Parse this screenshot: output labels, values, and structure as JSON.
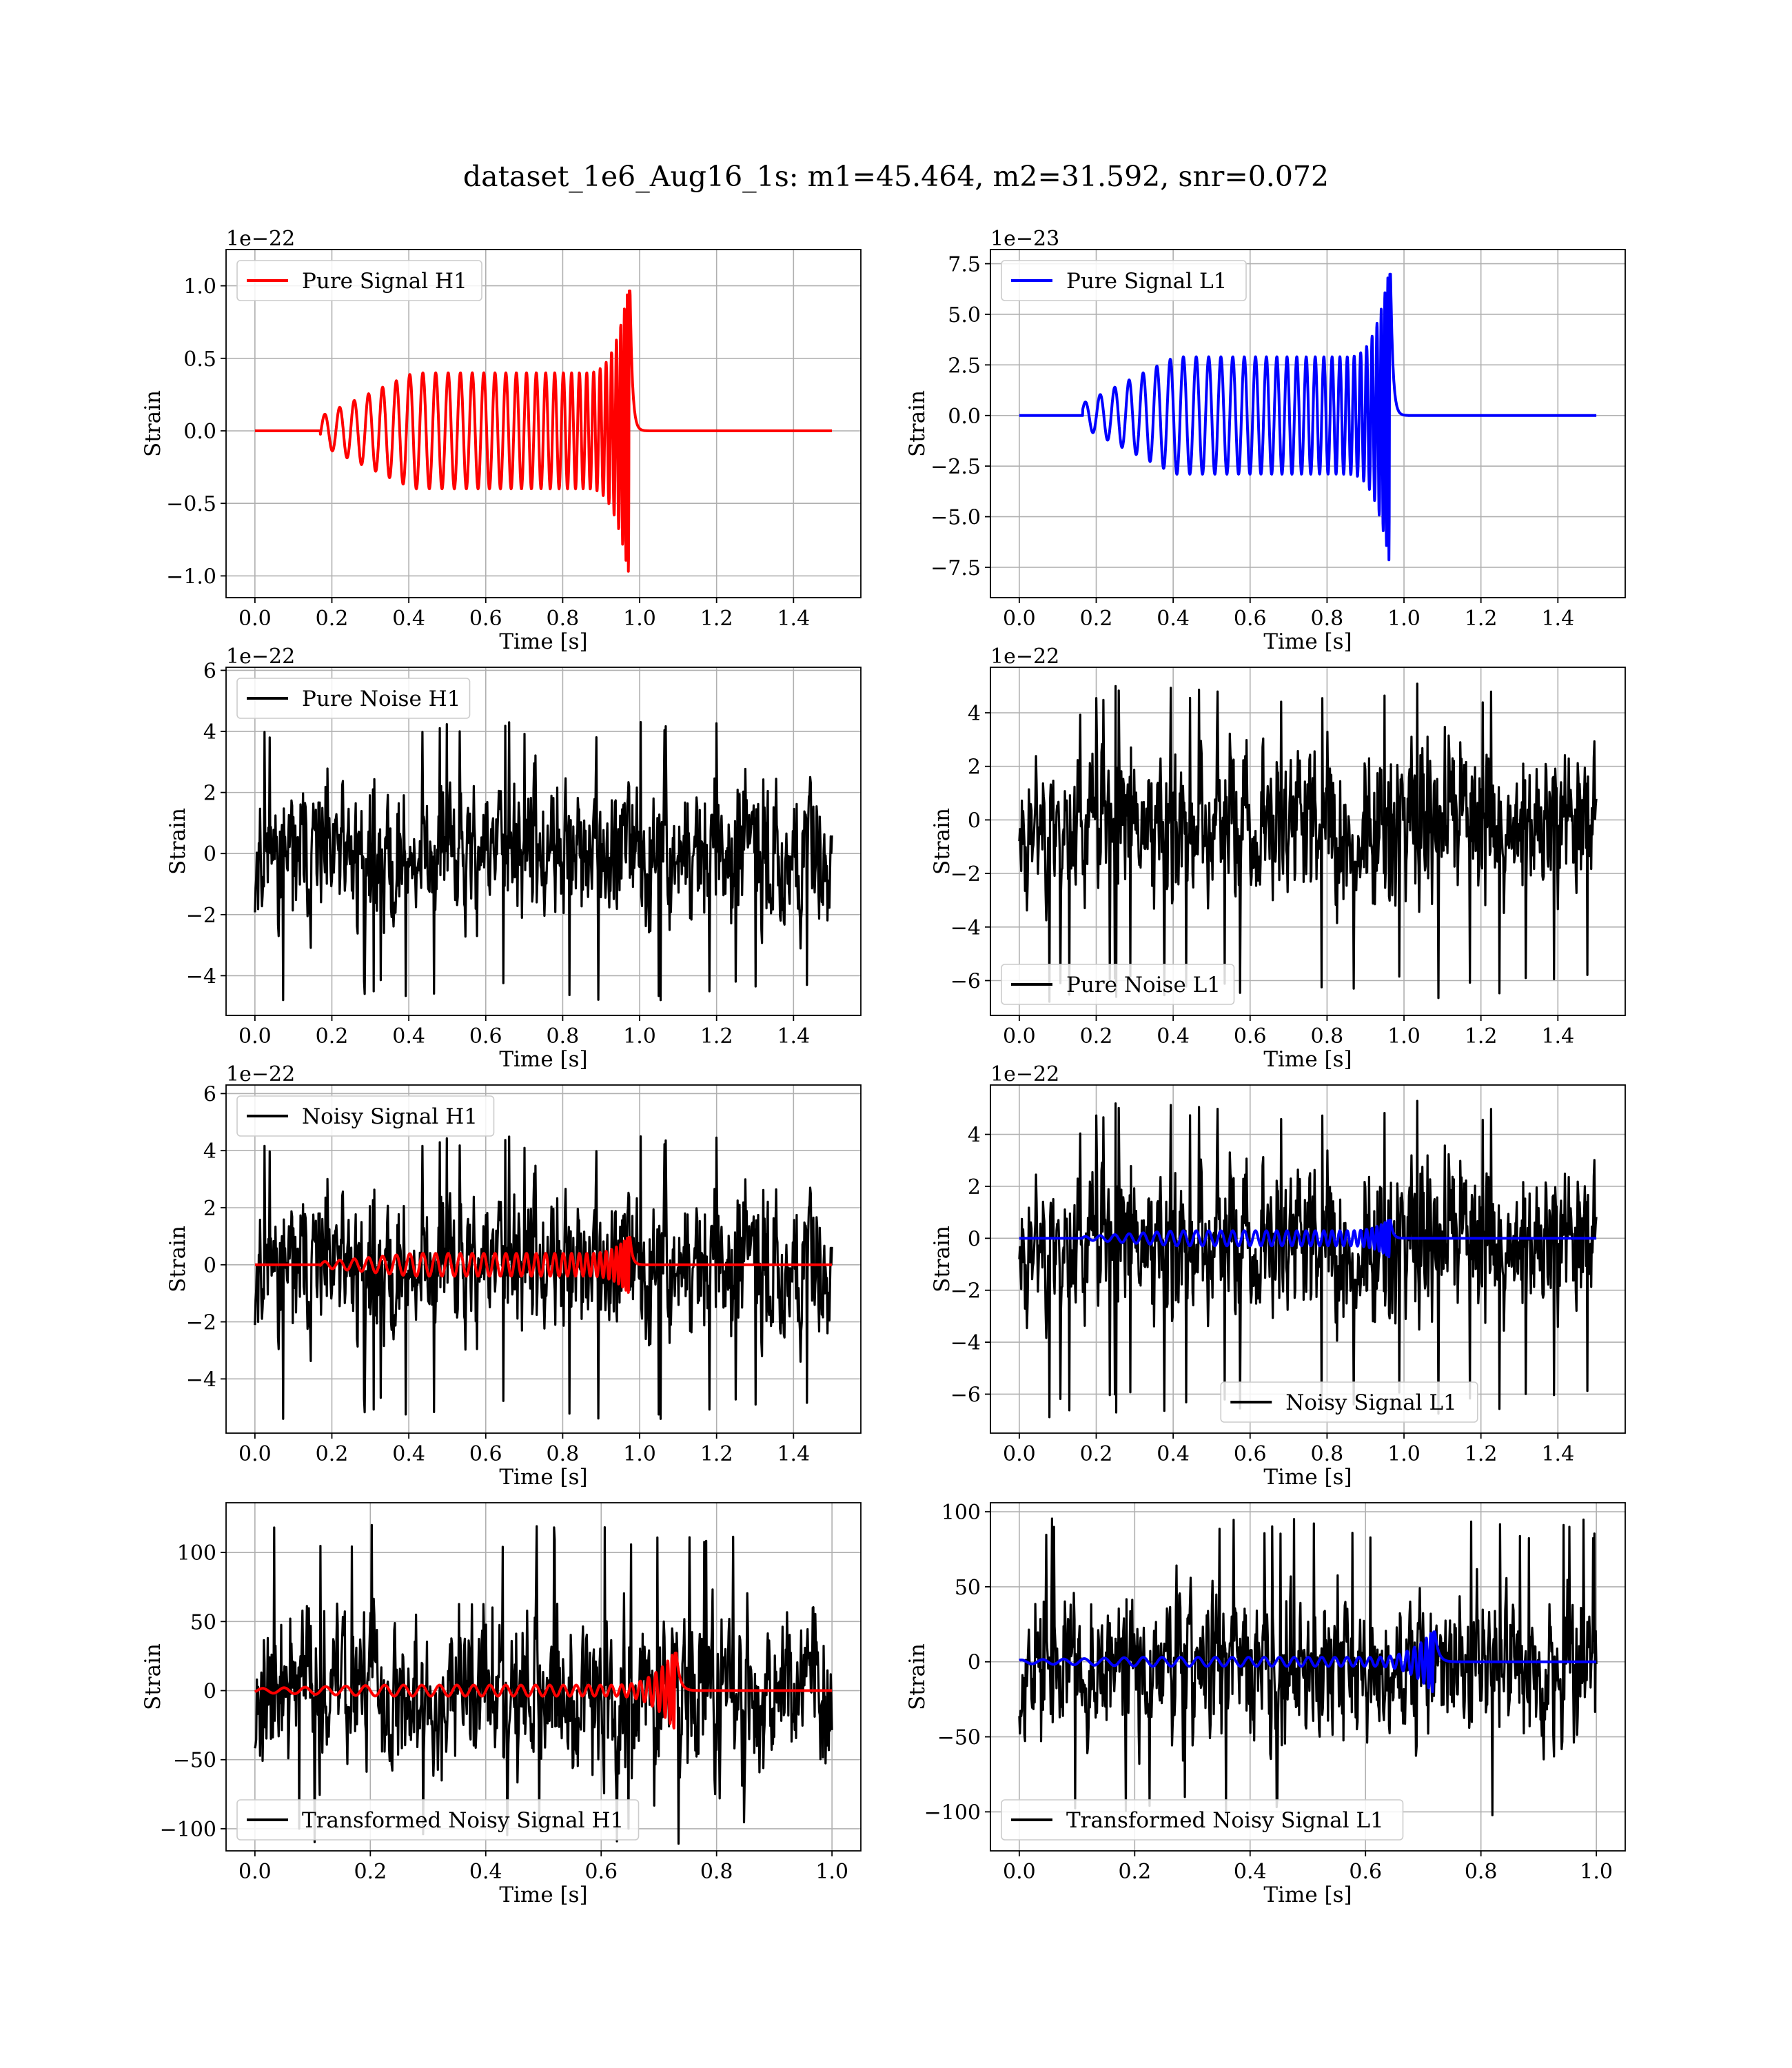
{
  "figure_title": "dataset_1e6_Aug16_1s: m1=45.464, m2=31.592, snr=0.072",
  "colors": {
    "h1_signal": "#ff0000",
    "l1_signal": "#0000ff",
    "noise": "#000000",
    "grid": "#b0b0b0",
    "axes": "#000000"
  },
  "chart_data": [
    {
      "type": "line",
      "legend": "Pure Signal H1",
      "legend_position": "upper-left",
      "xlabel": "Time [s]",
      "ylabel": "Strain",
      "offset_text": "1e−22",
      "xlim": [
        -0.075,
        1.575
      ],
      "ylim": [
        -1.15,
        1.25
      ],
      "xticks": [
        0.0,
        0.2,
        0.4,
        0.6,
        0.8,
        1.0,
        1.2,
        1.4
      ],
      "xtick_labels": [
        "0.0",
        "0.2",
        "0.4",
        "0.6",
        "0.8",
        "1.0",
        "1.2",
        "1.4"
      ],
      "yticks": [
        1.0,
        0.5,
        0.0,
        -0.5,
        -1.0
      ],
      "ytick_labels": [
        "1.0",
        "0.5",
        "0.0",
        "−0.5",
        "−1.0"
      ],
      "grid": true,
      "series": [
        {
          "name": "Pure Signal H1",
          "color": "#ff0000",
          "kind": "chirp",
          "x_range": [
            0.0,
            1.5
          ],
          "onset": 0.17,
          "merger": 0.975,
          "amp_start": 0.1,
          "amp_mid": 0.4,
          "amp_peak": 1.05
        }
      ]
    },
    {
      "type": "line",
      "legend": "Pure Signal L1",
      "legend_position": "upper-left",
      "xlabel": "Time [s]",
      "ylabel": "Strain",
      "offset_text": "1e−23",
      "xlim": [
        -0.075,
        1.575
      ],
      "ylim": [
        -9.0,
        8.2
      ],
      "xticks": [
        0.0,
        0.2,
        0.4,
        0.6,
        0.8,
        1.0,
        1.2,
        1.4
      ],
      "xtick_labels": [
        "0.0",
        "0.2",
        "0.4",
        "0.6",
        "0.8",
        "1.0",
        "1.2",
        "1.4"
      ],
      "yticks": [
        7.5,
        5.0,
        2.5,
        0.0,
        -2.5,
        -5.0,
        -7.5
      ],
      "ytick_labels": [
        "7.5",
        "5.0",
        "2.5",
        "0.0",
        "−2.5",
        "−5.0",
        "−7.5"
      ],
      "grid": true,
      "series": [
        {
          "name": "Pure Signal L1",
          "color": "#0000ff",
          "kind": "chirp",
          "x_range": [
            0.0,
            1.5
          ],
          "onset": 0.165,
          "merger": 0.965,
          "amp_start": 0.6,
          "amp_mid": 2.9,
          "amp_peak": 7.6
        }
      ]
    },
    {
      "type": "line",
      "legend": "Pure Noise H1",
      "legend_position": "upper-left",
      "xlabel": "Time [s]",
      "ylabel": "Strain",
      "offset_text": "1e−22",
      "xlim": [
        -0.075,
        1.575
      ],
      "ylim": [
        -5.3,
        6.1
      ],
      "xticks": [
        0.0,
        0.2,
        0.4,
        0.6,
        0.8,
        1.0,
        1.2,
        1.4
      ],
      "xtick_labels": [
        "0.0",
        "0.2",
        "0.4",
        "0.6",
        "0.8",
        "1.0",
        "1.2",
        "1.4"
      ],
      "yticks": [
        6,
        4,
        2,
        0,
        -2,
        -4
      ],
      "ytick_labels": [
        "6",
        "4",
        "2",
        "0",
        "−2",
        "−4"
      ],
      "grid": true,
      "series": [
        {
          "name": "Pure Noise H1",
          "color": "#000000",
          "kind": "noise",
          "x_range": [
            0.0,
            1.5
          ],
          "n": 900,
          "seed": 11,
          "min": -4.8,
          "max": 4.4
        }
      ]
    },
    {
      "type": "line",
      "legend": "Pure Noise L1",
      "legend_position": "lower-left",
      "xlabel": "Time [s]",
      "ylabel": "Strain",
      "offset_text": "1e−22",
      "xlim": [
        -0.075,
        1.575
      ],
      "ylim": [
        -7.3,
        5.7
      ],
      "xticks": [
        0.0,
        0.2,
        0.4,
        0.6,
        0.8,
        1.0,
        1.2,
        1.4
      ],
      "xtick_labels": [
        "0.0",
        "0.2",
        "0.4",
        "0.6",
        "0.8",
        "1.0",
        "1.2",
        "1.4"
      ],
      "yticks": [
        4,
        2,
        0,
        -2,
        -4,
        -6
      ],
      "ytick_labels": [
        "4",
        "2",
        "0",
        "−2",
        "−4",
        "−6"
      ],
      "grid": true,
      "series": [
        {
          "name": "Pure Noise L1",
          "color": "#000000",
          "kind": "noise",
          "x_range": [
            0.0,
            1.5
          ],
          "n": 900,
          "seed": 23,
          "min": -6.8,
          "max": 5.1
        }
      ]
    },
    {
      "type": "line",
      "legend": "Noisy Signal H1",
      "legend_position": "upper-left",
      "xlabel": "Time [s]",
      "ylabel": "Strain",
      "offset_text": "1e−22",
      "xlim": [
        -0.075,
        1.575
      ],
      "ylim": [
        -5.9,
        6.3
      ],
      "xticks": [
        0.0,
        0.2,
        0.4,
        0.6,
        0.8,
        1.0,
        1.2,
        1.4
      ],
      "xtick_labels": [
        "0.0",
        "0.2",
        "0.4",
        "0.6",
        "0.8",
        "1.0",
        "1.2",
        "1.4"
      ],
      "yticks": [
        6,
        4,
        2,
        0,
        -2,
        -4
      ],
      "ytick_labels": [
        "6",
        "4",
        "2",
        "0",
        "−2",
        "−4"
      ],
      "grid": true,
      "series": [
        {
          "name": "Noisy Signal H1",
          "color": "#000000",
          "kind": "noise",
          "x_range": [
            0.0,
            1.5
          ],
          "n": 900,
          "seed": 11,
          "min": -5.4,
          "max": 4.6
        },
        {
          "name": "",
          "color": "#ff0000",
          "kind": "chirp",
          "x_range": [
            0.0,
            1.5
          ],
          "onset": 0.17,
          "merger": 0.975,
          "amp_start": 0.1,
          "amp_mid": 0.4,
          "amp_peak": 1.05
        }
      ]
    },
    {
      "type": "line",
      "legend": "Noisy Signal L1",
      "legend_position": "lower-center",
      "xlabel": "Time [s]",
      "ylabel": "Strain",
      "offset_text": "1e−22",
      "xlim": [
        -0.075,
        1.575
      ],
      "ylim": [
        -7.5,
        5.9
      ],
      "xticks": [
        0.0,
        0.2,
        0.4,
        0.6,
        0.8,
        1.0,
        1.2,
        1.4
      ],
      "xtick_labels": [
        "0.0",
        "0.2",
        "0.4",
        "0.6",
        "0.8",
        "1.0",
        "1.2",
        "1.4"
      ],
      "yticks": [
        4,
        2,
        0,
        -2,
        -4,
        -6
      ],
      "ytick_labels": [
        "4",
        "2",
        "0",
        "−2",
        "−4",
        "−6"
      ],
      "grid": true,
      "series": [
        {
          "name": "Noisy Signal L1",
          "color": "#000000",
          "kind": "noise",
          "x_range": [
            0.0,
            1.5
          ],
          "n": 900,
          "seed": 23,
          "min": -6.9,
          "max": 5.3
        },
        {
          "name": "",
          "color": "#0000ff",
          "kind": "chirp",
          "x_range": [
            0.0,
            1.5
          ],
          "onset": 0.165,
          "merger": 0.965,
          "amp_start": 0.06,
          "amp_mid": 0.29,
          "amp_peak": 0.76
        }
      ]
    },
    {
      "type": "line",
      "legend": "Transformed Noisy Signal H1",
      "legend_position": "lower-left",
      "xlabel": "Time [s]",
      "ylabel": "Strain",
      "offset_text": "",
      "xlim": [
        -0.05,
        1.05
      ],
      "ylim": [
        -116,
        136
      ],
      "xticks": [
        0.0,
        0.2,
        0.4,
        0.6,
        0.8,
        1.0
      ],
      "xtick_labels": [
        "0.0",
        "0.2",
        "0.4",
        "0.6",
        "0.8",
        "1.0"
      ],
      "yticks": [
        100,
        50,
        0,
        -50,
        -100
      ],
      "ytick_labels": [
        "100",
        "50",
        "0",
        "−50",
        "−100"
      ],
      "grid": true,
      "series": [
        {
          "name": "Transformed Noisy Signal H1",
          "color": "#000000",
          "kind": "noise",
          "x_range": [
            0.0,
            1.0
          ],
          "n": 900,
          "seed": 37,
          "min": -112,
          "max": 121
        },
        {
          "name": "",
          "color": "#ff0000",
          "kind": "chirp",
          "x_range": [
            0.0,
            1.0
          ],
          "onset": 0.0,
          "merger": 0.73,
          "amp_start": 1.5,
          "amp_mid": 4,
          "amp_peak": 30
        }
      ]
    },
    {
      "type": "line",
      "legend": "Transformed Noisy Signal L1",
      "legend_position": "lower-left",
      "xlabel": "Time [s]",
      "ylabel": "Strain",
      "offset_text": "",
      "xlim": [
        -0.05,
        1.05
      ],
      "ylim": [
        -126,
        106
      ],
      "xticks": [
        0.0,
        0.2,
        0.4,
        0.6,
        0.8,
        1.0
      ],
      "xtick_labels": [
        "0.0",
        "0.2",
        "0.4",
        "0.6",
        "0.8",
        "1.0"
      ],
      "yticks": [
        100,
        50,
        0,
        -50,
        -100
      ],
      "ytick_labels": [
        "100",
        "50",
        "0",
        "−50",
        "−100"
      ],
      "grid": true,
      "series": [
        {
          "name": "Transformed Noisy Signal L1",
          "color": "#000000",
          "kind": "noise",
          "x_range": [
            0.0,
            1.0
          ],
          "n": 900,
          "seed": 53,
          "min": -103,
          "max": 96
        },
        {
          "name": "",
          "color": "#0000ff",
          "kind": "chirp",
          "x_range": [
            0.0,
            1.0
          ],
          "onset": 0.0,
          "merger": 0.72,
          "amp_start": 1.2,
          "amp_mid": 3,
          "amp_peak": 22
        }
      ]
    }
  ]
}
